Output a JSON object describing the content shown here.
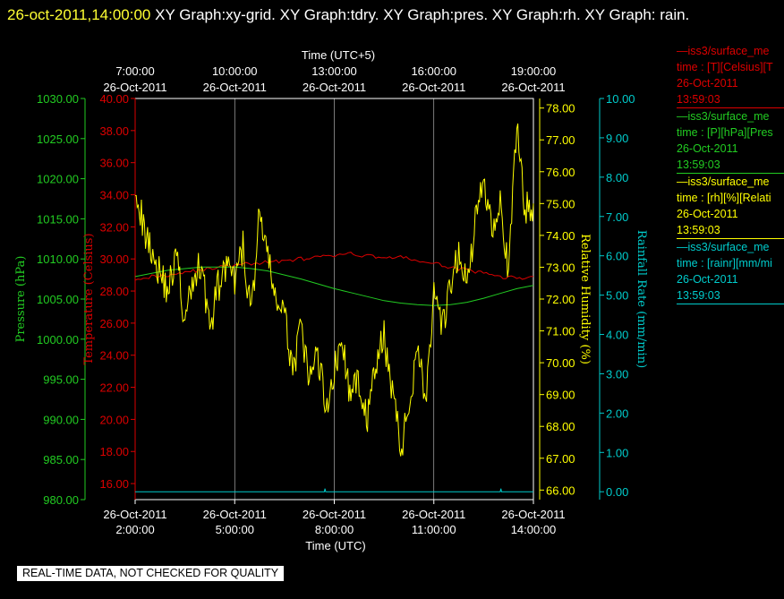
{
  "header": {
    "timestamp": "26-oct-2011,14:00:00",
    "graphs": "XY Graph:xy-grid.  XY Graph:tdry.  XY Graph:pres.  XY Graph:rh.  XY Graph: rain."
  },
  "notice": "REAL-TIME DATA, NOT CHECKED FOR QUALITY",
  "colors": {
    "pressure": "#22cc22",
    "temperature": "#dd0000",
    "rh": "#ffff00",
    "rain": "#00cccc",
    "grid": "#ffffff",
    "background": "#000000"
  },
  "legend": [
    {
      "name": "—iss3/surface_me",
      "var": "time : [T][Celsius][T",
      "date": "26-Oct-2011",
      "time": "13:59:03",
      "color": "#dd0000"
    },
    {
      "name": "—iss3/surface_me",
      "var": "time : [P][hPa][Pres",
      "date": "26-Oct-2011",
      "time": "13:59:03",
      "color": "#22cc22"
    },
    {
      "name": "—iss3/surface_me",
      "var": "time : [rh][%][Relati",
      "date": "26-Oct-2011",
      "time": "13:59:03",
      "color": "#ffff00"
    },
    {
      "name": "—iss3/surface_me",
      "var": "time : [rainr][mm/mi",
      "date": "26-Oct-2011",
      "time": "13:59:03",
      "color": "#00cccc"
    }
  ],
  "chart_data": {
    "type": "line",
    "top_axis": {
      "title": "Time (UTC+5)",
      "ticks": [
        {
          "time": "7:00:00",
          "date": "26-Oct-2011"
        },
        {
          "time": "10:00:00",
          "date": "26-Oct-2011"
        },
        {
          "time": "13:00:00",
          "date": "26-Oct-2011"
        },
        {
          "time": "16:00:00",
          "date": "26-Oct-2011"
        },
        {
          "time": "19:00:00",
          "date": "26-Oct-2011"
        }
      ]
    },
    "bottom_axis": {
      "title": "Time (UTC)",
      "xlim": [
        "2011-10-26 02:00:00",
        "2011-10-26 14:00:00"
      ],
      "ticks": [
        {
          "time": "2:00:00",
          "date": "26-Oct-2011"
        },
        {
          "time": "5:00:00",
          "date": "26-Oct-2011"
        },
        {
          "time": "8:00:00",
          "date": "26-Oct-2011"
        },
        {
          "time": "11:00:00",
          "date": "26-Oct-2011"
        },
        {
          "time": "14:00:00",
          "date": "26-Oct-2011"
        }
      ]
    },
    "axes": {
      "pressure": {
        "label": "Pressure (hPa)",
        "ylim": [
          980,
          1030
        ],
        "ticks": [
          "1030.00",
          "1025.00",
          "1020.00",
          "1015.00",
          "1010.00",
          "1005.00",
          "1000.00",
          "995.00",
          "990.00",
          "985.00",
          "980.00"
        ]
      },
      "temperature": {
        "label": "Temperature (Celsius)",
        "ylim": [
          15,
          40
        ],
        "ticks": [
          "40.00",
          "38.00",
          "36.00",
          "34.00",
          "32.00",
          "30.00",
          "28.00",
          "26.00",
          "24.00",
          "22.00",
          "20.00",
          "18.00",
          "16.00"
        ]
      },
      "rh": {
        "label": "Relative Humidity (%)",
        "ylim": [
          65.7,
          78.3
        ],
        "ticks": [
          "78.00",
          "77.00",
          "76.00",
          "75.00",
          "74.00",
          "73.00",
          "72.00",
          "71.00",
          "70.00",
          "69.00",
          "68.00",
          "67.00",
          "66.00"
        ]
      },
      "rain": {
        "label": "Rainfall Rate (mm/min)",
        "ylim": [
          -0.2,
          10
        ],
        "ticks": [
          "10.00",
          "9.00",
          "8.00",
          "7.00",
          "6.00",
          "5.00",
          "4.00",
          "3.00",
          "2.00",
          "1.00",
          "0.00"
        ]
      }
    },
    "grid": "vertical",
    "series": [
      {
        "name": "T",
        "axis": "temperature",
        "x": [
          2.0,
          2.5,
          3.0,
          3.5,
          4.0,
          4.5,
          5.0,
          5.5,
          6.0,
          6.5,
          7.0,
          7.5,
          8.0,
          8.5,
          9.0,
          9.5,
          10.0,
          10.5,
          11.0,
          11.5,
          12.0,
          12.5,
          13.0,
          13.5,
          14.0
        ],
        "values": [
          28.8,
          28.9,
          29.0,
          29.2,
          29.3,
          29.5,
          29.6,
          29.7,
          29.8,
          29.9,
          30.0,
          30.1,
          30.2,
          30.3,
          30.2,
          30.1,
          30.1,
          29.9,
          29.7,
          29.5,
          29.3,
          29.1,
          28.9,
          28.8,
          28.9
        ]
      },
      {
        "name": "P",
        "axis": "pressure",
        "x": [
          2.0,
          2.5,
          3.0,
          3.5,
          4.0,
          4.5,
          5.0,
          5.5,
          6.0,
          6.5,
          7.0,
          7.5,
          8.0,
          8.5,
          9.0,
          9.5,
          10.0,
          10.5,
          11.0,
          11.5,
          12.0,
          12.5,
          13.0,
          13.5,
          14.0
        ],
        "values": [
          1007.8,
          1008.2,
          1008.6,
          1008.8,
          1009.0,
          1009.0,
          1009.0,
          1008.8,
          1008.5,
          1008.0,
          1007.5,
          1006.9,
          1006.3,
          1005.8,
          1005.3,
          1004.8,
          1004.5,
          1004.3,
          1004.2,
          1004.3,
          1004.6,
          1005.1,
          1005.7,
          1006.3,
          1006.7
        ]
      },
      {
        "name": "rh",
        "axis": "rh",
        "x": [
          2.0,
          2.25,
          2.5,
          2.75,
          3.0,
          3.25,
          3.5,
          3.75,
          4.0,
          4.25,
          4.5,
          4.75,
          5.0,
          5.25,
          5.5,
          5.75,
          6.0,
          6.25,
          6.5,
          6.75,
          7.0,
          7.25,
          7.5,
          7.75,
          8.0,
          8.25,
          8.5,
          8.75,
          9.0,
          9.25,
          9.5,
          9.75,
          10.0,
          10.25,
          10.5,
          10.75,
          11.0,
          11.25,
          11.5,
          11.75,
          12.0,
          12.25,
          12.5,
          12.75,
          13.0,
          13.25,
          13.5,
          13.75,
          14.0
        ],
        "values": [
          75.8,
          74.2,
          73.6,
          72.8,
          72.3,
          73.4,
          71.2,
          72.6,
          73.2,
          71.0,
          72.4,
          73.0,
          72.5,
          73.6,
          71.5,
          74.8,
          73.2,
          72.0,
          71.4,
          69.8,
          71.0,
          69.4,
          70.3,
          68.6,
          69.8,
          70.6,
          68.8,
          69.5,
          68.2,
          69.9,
          70.8,
          69.2,
          67.3,
          68.5,
          70.7,
          68.8,
          72.0,
          71.0,
          72.3,
          73.5,
          72.4,
          74.4,
          75.8,
          74.3,
          75.2,
          72.6,
          77.6,
          74.8,
          75.0
        ]
      },
      {
        "name": "rainr",
        "axis": "rain",
        "x": [
          2.0,
          7.7,
          7.72,
          7.74,
          13.0,
          13.02,
          13.04,
          14.0
        ],
        "values": [
          0.0,
          0.0,
          0.08,
          0.0,
          0.0,
          0.08,
          0.0,
          0.0
        ]
      }
    ]
  }
}
